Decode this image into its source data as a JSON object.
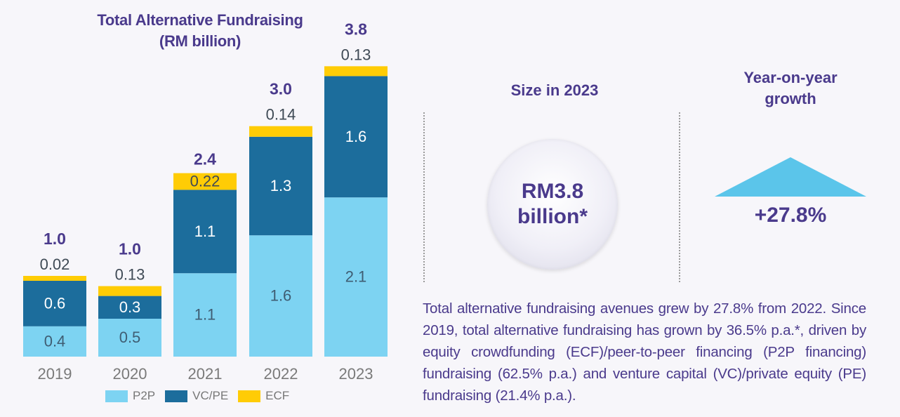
{
  "chart_data": {
    "type": "bar",
    "stacked": true,
    "title": "Total Alternative Fundraising",
    "subtitle": "(RM billion)",
    "categories": [
      "2019",
      "2020",
      "2021",
      "2022",
      "2023"
    ],
    "series": [
      {
        "name": "P2P",
        "values": [
          0.4,
          0.5,
          1.1,
          1.6,
          2.1
        ],
        "labels": [
          "0.4",
          "0.5",
          "1.1",
          "1.6",
          "2.1"
        ],
        "color": "#7dd3f2"
      },
      {
        "name": "VC/PE",
        "values": [
          0.6,
          0.3,
          1.1,
          1.3,
          1.6
        ],
        "labels": [
          "0.6",
          "0.3",
          "1.1",
          "1.3",
          "1.6"
        ],
        "color": "#1c6d9c"
      },
      {
        "name": "ECF",
        "values": [
          0.02,
          0.13,
          0.22,
          0.14,
          0.13
        ],
        "labels": [
          "0.02",
          "0.13",
          "0.22",
          "0.14",
          "0.13"
        ],
        "color": "#ffcc05"
      }
    ],
    "totals": [
      "1.0",
      "1.0",
      "2.4",
      "3.0",
      "3.8"
    ],
    "xlabel": "",
    "ylabel": "",
    "grid": false,
    "legend": "bottom"
  },
  "stats": {
    "size_title": "Size in 2023",
    "size_value_line1": "RM3.8",
    "size_value_line2": "billion*",
    "growth_title_line1": "Year-on-year",
    "growth_title_line2": "growth",
    "growth_value": "+27.8%"
  },
  "description": "Total alternative fundraising avenues grew by 27.8% from 2022. Since 2019, total alternative fundraising has grown by 36.5% p.a.*, driven by equity crowdfunding (ECF)/peer-to-peer financing (P2P financing) fundraising (62.5% p.a.) and venture capital (VC)/private equity (PE) fundraising (21.4% p.a.).",
  "colors": {
    "accent": "#4a3a8c",
    "growth_triangle": "#5bc5ea"
  }
}
